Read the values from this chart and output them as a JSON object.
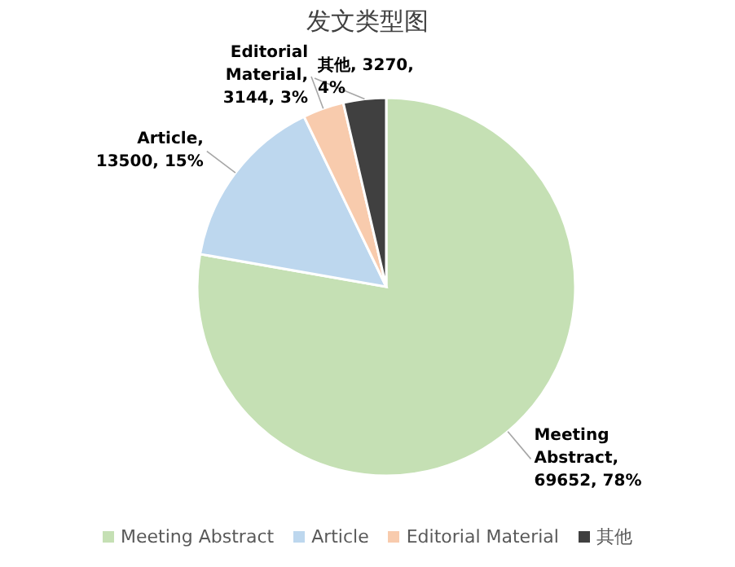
{
  "chart_data": {
    "type": "pie",
    "title": "发文类型图",
    "categories": [
      "Meeting Abstract",
      "Article",
      "Editorial Material",
      "其他"
    ],
    "values": [
      69652,
      13500,
      3144,
      3270
    ],
    "value_labels": [
      "Meeting Abstract, 69652, 78%",
      "Article, 13500, 15%",
      "Editorial Material, 3144, 3%",
      "其他, 3270, 4%"
    ],
    "colors": [
      "#c5e0b4",
      "#bdd7ee",
      "#f8cbad",
      "#404040"
    ],
    "legend": "bottom"
  }
}
